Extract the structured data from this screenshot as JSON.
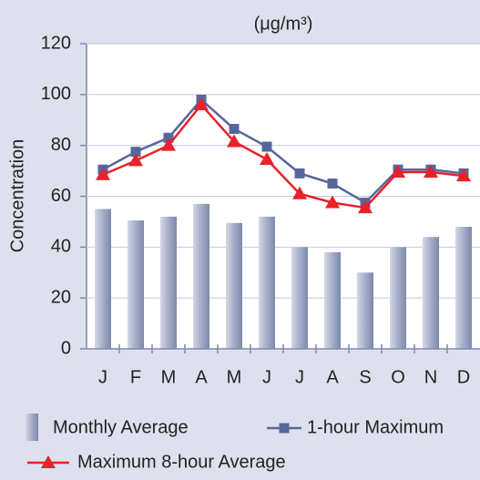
{
  "chart_data": {
    "type": "combo",
    "subtitle": "(μg/m³)",
    "y_label": "Concentration",
    "categories": [
      "J",
      "F",
      "M",
      "A",
      "M",
      "J",
      "J",
      "A",
      "S",
      "O",
      "N",
      "D"
    ],
    "series": [
      {
        "name": "Monthly Average",
        "type": "bar",
        "color": "#9ba4c2",
        "values": [
          55,
          50.5,
          52,
          57,
          49.5,
          52,
          40,
          38,
          30,
          40,
          44,
          48
        ]
      },
      {
        "name": "1-hour Maximum",
        "type": "line",
        "marker": "square",
        "color": "#56679b",
        "values": [
          70.5,
          77.5,
          83,
          98,
          86.5,
          79.5,
          69,
          65,
          57.5,
          70.5,
          70.5,
          69
        ]
      },
      {
        "name": "Maximum 8-hour Average",
        "type": "line",
        "marker": "triangle",
        "color": "#e8212b",
        "values": [
          68.5,
          74,
          80,
          96,
          81.5,
          74.5,
          61,
          57.5,
          55.5,
          69.5,
          69.5,
          68
        ]
      }
    ],
    "ylim": [
      0,
      120
    ],
    "yticks": [
      0,
      20,
      40,
      60,
      80,
      100,
      120
    ],
    "grid": true
  }
}
